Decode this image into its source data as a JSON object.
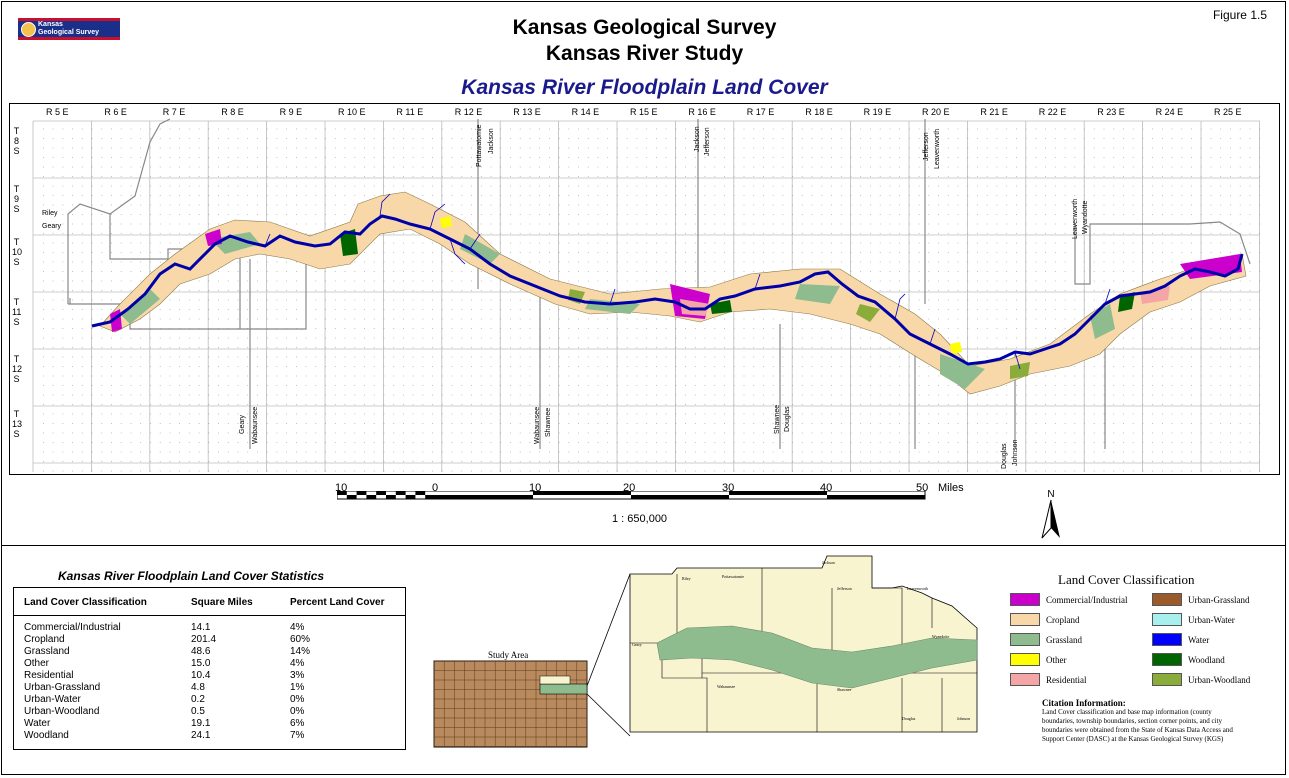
{
  "header": {
    "logo_text_line1": "Kansas",
    "logo_text_line2": "Geological Survey",
    "figure_number": "Figure 1.5",
    "title_line1": "Kansas Geological Survey",
    "title_line2": "Kansas River Study",
    "map_title": "Kansas River Floodplain Land Cover"
  },
  "map": {
    "range_labels": [
      "R 5 E",
      "R 6 E",
      "R 7 E",
      "R 8 E",
      "R 9 E",
      "R 10 E",
      "R 11 E",
      "R 12 E",
      "R 13 E",
      "R 14 E",
      "R 15 E",
      "R 16 E",
      "R 17 E",
      "R 18 E",
      "R 19 E",
      "R 20 E",
      "R 21 E",
      "R 22 E",
      "R 23 E",
      "R 24 E",
      "R 25 E"
    ],
    "township_labels": [
      {
        "t": "T",
        "n": "8",
        "s": "S"
      },
      {
        "t": "T",
        "n": "9",
        "s": "S"
      },
      {
        "t": "T",
        "n": "10",
        "s": "S"
      },
      {
        "t": "T",
        "n": "11",
        "s": "S"
      },
      {
        "t": "T",
        "n": "12",
        "s": "S"
      },
      {
        "t": "T",
        "n": "13",
        "s": "S"
      }
    ],
    "county_labels": {
      "riley": "Riley",
      "geary": "Geary",
      "pottawatomie": "Pottawatomie",
      "jackson": "Jackson",
      "jackson2": "Jackson",
      "jefferson": "Jefferson",
      "jefferson2": "Jefferson",
      "leavenworth": "Leavenworth",
      "leavenworth2": "Leavenworth",
      "wyandotte": "Wyandotte",
      "geary2": "Geary",
      "wabaunsee": "Wabaunsee",
      "wabaunsee2": "Wabaunsee",
      "shawnee": "Shawnee",
      "shawnee2": "Shawnee",
      "douglas": "Douglas",
      "douglas2": "Douglas",
      "johnson": "Johnson"
    }
  },
  "scale_bar": {
    "labels": [
      "10",
      "0",
      "10",
      "20",
      "30",
      "40",
      "50"
    ],
    "unit": "Miles",
    "ratio": "1 : 650,000"
  },
  "north_arrow": {
    "label": "N"
  },
  "stats": {
    "title": "Kansas River Floodplain Land Cover Statistics",
    "headers": [
      "Land Cover Classification",
      "Square Miles",
      "Percent Land Cover"
    ],
    "rows": [
      {
        "class": "Commercial/Industrial",
        "sq_miles": "14.1",
        "percent": "4%"
      },
      {
        "class": "Cropland",
        "sq_miles": "201.4",
        "percent": "60%"
      },
      {
        "class": "Grassland",
        "sq_miles": "48.6",
        "percent": "14%"
      },
      {
        "class": "Other",
        "sq_miles": "15.0",
        "percent": "4%"
      },
      {
        "class": "Residential",
        "sq_miles": "10.4",
        "percent": "3%"
      },
      {
        "class": "Urban-Grassland",
        "sq_miles": "4.8",
        "percent": "1%"
      },
      {
        "class": "Urban-Water",
        "sq_miles": "0.2",
        "percent": "0%"
      },
      {
        "class": "Urban-Woodland",
        "sq_miles": "0.5",
        "percent": "0%"
      },
      {
        "class": "Water",
        "sq_miles": "19.1",
        "percent": "6%"
      },
      {
        "class": "Woodland",
        "sq_miles": "24.1",
        "percent": "7%"
      }
    ]
  },
  "study_area": {
    "label": "Study Area",
    "inset_counties": [
      "Riley",
      "Pottawatomie",
      "Jackson",
      "Geary",
      "Wabaunsee",
      "Shawnee",
      "Jefferson",
      "Leavenworth",
      "Wyandotte",
      "Douglas",
      "Johnson"
    ]
  },
  "legend": {
    "title": "Land Cover Classification",
    "items": [
      {
        "label": "Commercial/Industrial",
        "color": "#cc00cc"
      },
      {
        "label": "Cropland",
        "color": "#f8d8a8"
      },
      {
        "label": "Grassland",
        "color": "#8fbc8f"
      },
      {
        "label": "Other",
        "color": "#ffff00"
      },
      {
        "label": "Residential",
        "color": "#f4a6a6"
      },
      {
        "label": "Urban-Grassland",
        "color": "#9b5a2a"
      },
      {
        "label": "Urban-Water",
        "color": "#a8f0f0"
      },
      {
        "label": "Water",
        "color": "#0000ff"
      },
      {
        "label": "Woodland",
        "color": "#006400"
      },
      {
        "label": "Urban-Woodland",
        "color": "#8aac3a"
      }
    ]
  },
  "citation": {
    "title": "Citation Information:",
    "text": "Land Cover classification and base map information (county boundaries, township boundaries, section corner points, and city boundaries were obtained from the State of Kansas Data Access and Support Center (DASC) at the Kansas Geological Survey (KGS)"
  }
}
